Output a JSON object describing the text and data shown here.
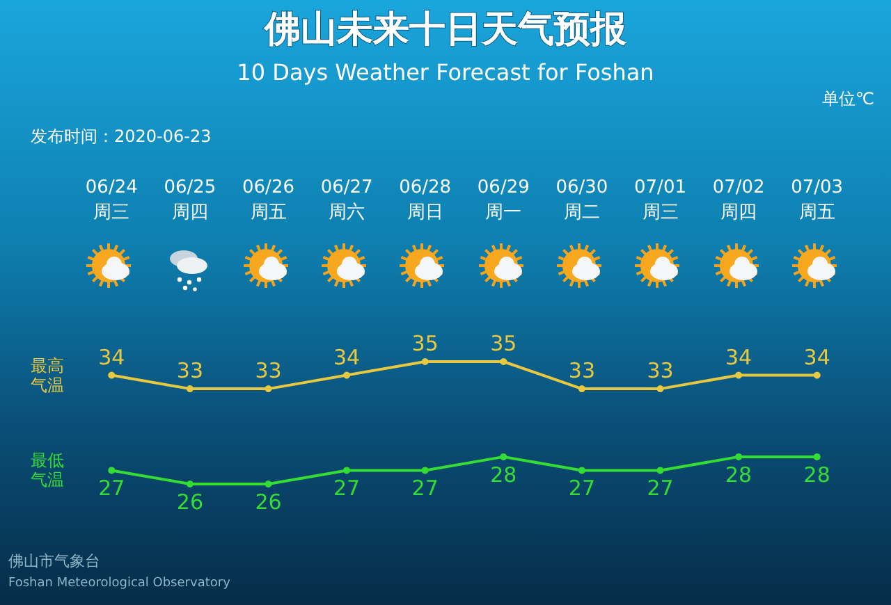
{
  "chart_data": {
    "type": "line",
    "title": "佛山未来十日天气预报",
    "subtitle": "10 Days Weather Forecast for Foshan",
    "categories": [
      "06/24\n周三",
      "06/25\n周四",
      "06/26\n周五",
      "06/27\n周六",
      "06/28\n周日",
      "06/29\n周一",
      "06/30\n周二",
      "07/01\n周三",
      "07/02\n周四",
      "07/03\n周五"
    ],
    "series": [
      {
        "name": "最高气温",
        "color": "#e8c840",
        "values": [
          34,
          33,
          33,
          34,
          35,
          35,
          33,
          33,
          34,
          34
        ]
      },
      {
        "name": "最低气温",
        "color": "#33dd33",
        "values": [
          27,
          26,
          26,
          27,
          27,
          28,
          27,
          27,
          28,
          28
        ]
      }
    ],
    "data_labels": true,
    "marker": "circle",
    "line_style": "solid",
    "legend": false,
    "grid": false,
    "tick_labels": "x",
    "annotations": [
      "单位℃",
      "发布时间：2020-06-23",
      "佛山市气象台",
      "Foshan Meteorological Observatory"
    ]
  }
}
